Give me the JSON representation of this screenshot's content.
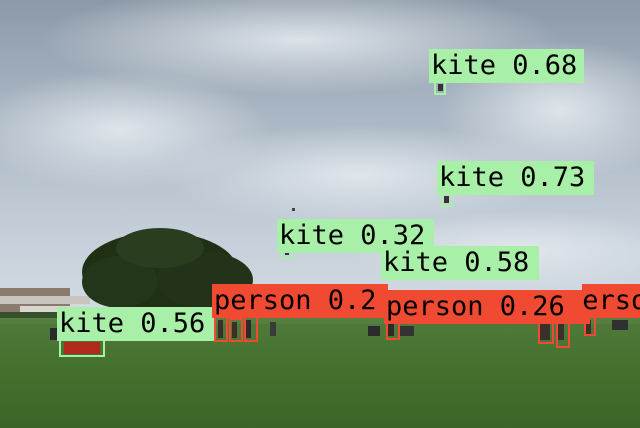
{
  "colors": {
    "kite": "#a8f0a8",
    "person": "#f04a32"
  },
  "detections": [
    {
      "id": "kite-1",
      "class": "kite",
      "score": "0.68",
      "text": "kite 0.68"
    },
    {
      "id": "kite-2",
      "class": "kite",
      "score": "0.73",
      "text": "kite 0.73"
    },
    {
      "id": "kite-3",
      "class": "kite",
      "score": "0.32",
      "text": "kite 0.32"
    },
    {
      "id": "kite-4",
      "class": "kite",
      "score": "0.58",
      "text": "kite 0.58"
    },
    {
      "id": "kite-5",
      "class": "kite",
      "score": "0.56",
      "text": "kite 0.56"
    },
    {
      "id": "person-1",
      "class": "person",
      "score": "0.2",
      "text": "person 0.2"
    },
    {
      "id": "person-2",
      "class": "person",
      "score": "0.26",
      "text": "person 0.26"
    },
    {
      "id": "person-3",
      "class": "person",
      "score": "",
      "text": "perso"
    }
  ]
}
